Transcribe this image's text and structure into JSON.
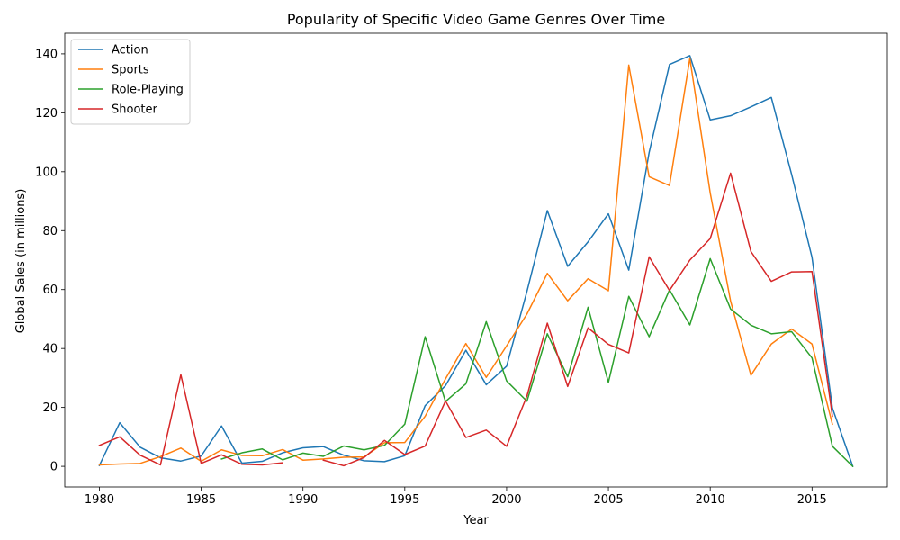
{
  "chart_data": {
    "type": "line",
    "title": "Popularity of Specific Video Game Genres Over Time",
    "xlabel": "Year",
    "ylabel": "Global Sales (in millions)",
    "xlim": [
      1978.3,
      2018.7
    ],
    "ylim": [
      -7,
      147
    ],
    "x_ticks": [
      1980,
      1985,
      1990,
      1995,
      2000,
      2005,
      2010,
      2015
    ],
    "y_ticks": [
      0,
      20,
      40,
      60,
      80,
      100,
      120,
      140
    ],
    "grid": false,
    "legend_position": "top-left",
    "x": [
      1980,
      1981,
      1982,
      1983,
      1984,
      1985,
      1986,
      1987,
      1988,
      1989,
      1990,
      1991,
      1992,
      1993,
      1994,
      1995,
      1996,
      1997,
      1998,
      1999,
      2000,
      2001,
      2002,
      2003,
      2004,
      2005,
      2006,
      2007,
      2008,
      2009,
      2010,
      2011,
      2012,
      2013,
      2014,
      2015,
      2016,
      2017
    ],
    "series": [
      {
        "name": "Action",
        "color": "#1f77b4",
        "values": [
          0.3,
          14.8,
          6.5,
          2.9,
          1.8,
          3.5,
          13.7,
          1.1,
          1.7,
          4.6,
          6.3,
          6.7,
          3.8,
          1.9,
          1.6,
          3.6,
          20.6,
          27.4,
          39.4,
          27.7,
          34.0,
          59.4,
          86.8,
          67.9,
          76.2,
          85.7,
          66.6,
          106.5,
          136.4,
          139.4,
          117.6,
          119.0,
          122.0,
          125.2,
          99.0,
          70.9,
          19.8,
          0.0
        ]
      },
      {
        "name": "Sports",
        "color": "#ff7f0e",
        "values": [
          0.5,
          0.8,
          1.0,
          3.3,
          6.2,
          1.7,
          5.6,
          3.7,
          3.6,
          5.7,
          2.1,
          2.5,
          3.1,
          3.2,
          8.0,
          8.1,
          17.0,
          29.7,
          41.7,
          30.2,
          40.9,
          51.7,
          65.5,
          56.2,
          63.7,
          59.6,
          136.2,
          98.3,
          95.3,
          138.5,
          92.8,
          56.1,
          30.9,
          41.5,
          46.6,
          41.5,
          14.3,
          null
        ]
      },
      {
        "name": "Role-Playing",
        "color": "#2ca02c",
        "values": [
          null,
          null,
          null,
          null,
          null,
          null,
          2.5,
          4.6,
          5.9,
          2.2,
          4.5,
          3.4,
          6.9,
          5.6,
          7.1,
          14.3,
          44.0,
          22.0,
          28.0,
          49.1,
          29.0,
          22.1,
          45.0,
          30.4,
          54.0,
          28.5,
          57.7,
          44.0,
          59.9,
          48.0,
          70.5,
          53.4,
          47.9,
          45.0,
          45.7,
          36.8,
          6.8,
          0.0
        ]
      },
      {
        "name": "Shooter",
        "color": "#d62728",
        "values": [
          7.1,
          10.0,
          3.8,
          0.5,
          31.1,
          1.0,
          3.9,
          0.7,
          0.5,
          1.2,
          null,
          2.1,
          0.2,
          3.0,
          8.8,
          4.0,
          6.9,
          22.2,
          9.8,
          12.3,
          6.8,
          23.9,
          48.6,
          27.1,
          47.0,
          41.4,
          38.5,
          71.1,
          59.7,
          70.0,
          77.3,
          99.5,
          72.9,
          62.8,
          66.0,
          66.1,
          17.0,
          null
        ]
      }
    ]
  }
}
